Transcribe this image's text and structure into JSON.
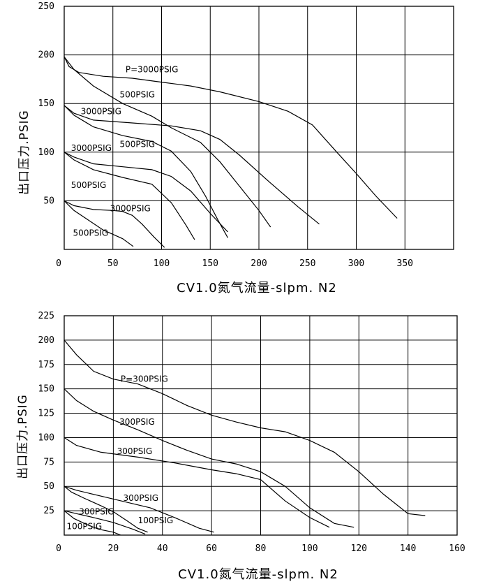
{
  "chart_data": [
    {
      "type": "line",
      "xlabel": "CV1.0氮气流量-slpm. N2",
      "ylabel": "出口压力.PSIG",
      "xlim": [
        0,
        400
      ],
      "ylim": [
        0,
        250
      ],
      "xticks": [
        0,
        50,
        100,
        150,
        200,
        250,
        300,
        350
      ],
      "yticks": [
        50,
        100,
        150,
        200,
        250
      ],
      "grid": true,
      "series": [
        {
          "points": [
            [
              0,
              198
            ],
            [
              5,
              188
            ],
            [
              15,
              182
            ],
            [
              40,
              178
            ],
            [
              70,
              176
            ],
            [
              100,
              172
            ],
            [
              130,
              168
            ],
            [
              160,
              162
            ],
            [
              200,
              152
            ],
            [
              230,
              142
            ],
            [
              255,
              128
            ],
            [
              280,
              100
            ],
            [
              300,
              78
            ],
            [
              320,
              55
            ],
            [
              342,
              32
            ]
          ]
        },
        {
          "points": [
            [
              0,
              198
            ],
            [
              10,
              185
            ],
            [
              30,
              168
            ],
            [
              60,
              150
            ],
            [
              90,
              137
            ],
            [
              110,
              125
            ],
            [
              140,
              110
            ],
            [
              160,
              90
            ],
            [
              180,
              65
            ],
            [
              200,
              40
            ],
            [
              212,
              23
            ]
          ]
        },
        {
          "points": [
            [
              0,
              148
            ],
            [
              10,
              140
            ],
            [
              30,
              133
            ],
            [
              70,
              130
            ],
            [
              110,
              127
            ],
            [
              140,
              122
            ],
            [
              160,
              113
            ],
            [
              180,
              97
            ],
            [
              210,
              70
            ],
            [
              240,
              44
            ],
            [
              262,
              26
            ]
          ]
        },
        {
          "points": [
            [
              0,
              148
            ],
            [
              10,
              138
            ],
            [
              30,
              126
            ],
            [
              60,
              117
            ],
            [
              90,
              111
            ],
            [
              110,
              101
            ],
            [
              130,
              80
            ],
            [
              145,
              55
            ],
            [
              158,
              30
            ],
            [
              168,
              12
            ]
          ]
        },
        {
          "points": [
            [
              0,
              100
            ],
            [
              10,
              95
            ],
            [
              30,
              88
            ],
            [
              60,
              85
            ],
            [
              90,
              82
            ],
            [
              110,
              75
            ],
            [
              130,
              60
            ],
            [
              150,
              37
            ],
            [
              168,
              18
            ]
          ]
        },
        {
          "points": [
            [
              0,
              100
            ],
            [
              10,
              92
            ],
            [
              30,
              82
            ],
            [
              60,
              74
            ],
            [
              90,
              67
            ],
            [
              110,
              48
            ],
            [
              125,
              25
            ],
            [
              134,
              10
            ]
          ]
        },
        {
          "points": [
            [
              0,
              50
            ],
            [
              10,
              45
            ],
            [
              30,
              41
            ],
            [
              50,
              40
            ],
            [
              60,
              39
            ],
            [
              70,
              35
            ],
            [
              80,
              26
            ],
            [
              92,
              13
            ],
            [
              103,
              2
            ]
          ]
        },
        {
          "points": [
            [
              0,
              50
            ],
            [
              10,
              40
            ],
            [
              25,
              30
            ],
            [
              40,
              20
            ],
            [
              60,
              11
            ],
            [
              71,
              3
            ]
          ]
        }
      ],
      "annotations": [
        {
          "text": "P=3000PSIG",
          "x": 63,
          "y": 185
        },
        {
          "text": "500PSIG",
          "x": 57,
          "y": 159
        },
        {
          "text": "3000PSIG",
          "x": 17,
          "y": 142
        },
        {
          "text": "500PSIG",
          "x": 57,
          "y": 108
        },
        {
          "text": "3000PSIG",
          "x": 7,
          "y": 104
        },
        {
          "text": "500PSIG",
          "x": 7,
          "y": 66
        },
        {
          "text": "3000PSIG",
          "x": 47,
          "y": 42
        },
        {
          "text": "500PSIG",
          "x": 9,
          "y": 17
        }
      ]
    },
    {
      "type": "line",
      "xlabel": "CV1.0氮气流量-slpm. N2",
      "ylabel": "出口压力.PSIG",
      "xlim": [
        0,
        160
      ],
      "ylim": [
        0,
        225
      ],
      "xticks": [
        0,
        20,
        40,
        60,
        80,
        100,
        120,
        140,
        160
      ],
      "yticks": [
        25,
        50,
        75,
        100,
        125,
        150,
        175,
        200,
        225
      ],
      "grid": true,
      "series": [
        {
          "points": [
            [
              0,
              200
            ],
            [
              5,
              185
            ],
            [
              12,
              168
            ],
            [
              20,
              160
            ],
            [
              30,
              155
            ],
            [
              40,
              145
            ],
            [
              50,
              133
            ],
            [
              60,
              123
            ],
            [
              70,
              116
            ],
            [
              80,
              110
            ],
            [
              90,
              106
            ],
            [
              100,
              97
            ],
            [
              110,
              85
            ],
            [
              120,
              65
            ],
            [
              130,
              42
            ],
            [
              140,
              22
            ],
            [
              147,
              20
            ]
          ]
        },
        {
          "points": [
            [
              0,
              150
            ],
            [
              5,
              138
            ],
            [
              12,
              127
            ],
            [
              20,
              118
            ],
            [
              30,
              108
            ],
            [
              40,
              97
            ],
            [
              50,
              87
            ],
            [
              60,
              78
            ],
            [
              70,
              73
            ],
            [
              80,
              65
            ],
            [
              90,
              50
            ],
            [
              100,
              28
            ],
            [
              110,
              12
            ],
            [
              118,
              8
            ]
          ]
        },
        {
          "points": [
            [
              0,
              100
            ],
            [
              5,
              92
            ],
            [
              15,
              85
            ],
            [
              30,
              80
            ],
            [
              45,
              74
            ],
            [
              60,
              67
            ],
            [
              70,
              63
            ],
            [
              80,
              57
            ],
            [
              90,
              35
            ],
            [
              100,
              18
            ],
            [
              108,
              8
            ]
          ]
        },
        {
          "points": [
            [
              0,
              50
            ],
            [
              5,
              46
            ],
            [
              15,
              40
            ],
            [
              25,
              34
            ],
            [
              35,
              28
            ],
            [
              45,
              18
            ],
            [
              55,
              7
            ],
            [
              61,
              3
            ]
          ]
        },
        {
          "points": [
            [
              0,
              50
            ],
            [
              3,
              44
            ],
            [
              8,
              38
            ],
            [
              15,
              30
            ],
            [
              20,
              24
            ],
            [
              26,
              14
            ],
            [
              30,
              7
            ],
            [
              34,
              3
            ]
          ]
        },
        {
          "points": [
            [
              0,
              25
            ],
            [
              5,
              22
            ],
            [
              12,
              18
            ],
            [
              20,
              13
            ],
            [
              28,
              6
            ],
            [
              33,
              1
            ]
          ]
        },
        {
          "points": [
            [
              0,
              25
            ],
            [
              4,
              17
            ],
            [
              9,
              11
            ],
            [
              14,
              6
            ],
            [
              20,
              3
            ],
            [
              23,
              0
            ]
          ]
        }
      ],
      "annotations": [
        {
          "text": "P=300PSIG",
          "x": 23,
          "y": 160
        },
        {
          "text": "300PSIG",
          "x": 22.5,
          "y": 116
        },
        {
          "text": "300PSIG",
          "x": 21.5,
          "y": 86
        },
        {
          "text": "300PSIG",
          "x": 24,
          "y": 38
        },
        {
          "text": "100PSIG",
          "x": 30,
          "y": 15
        },
        {
          "text": "300PSIG",
          "x": 6,
          "y": 24
        },
        {
          "text": "100PSIG",
          "x": 1,
          "y": 9
        }
      ]
    }
  ]
}
